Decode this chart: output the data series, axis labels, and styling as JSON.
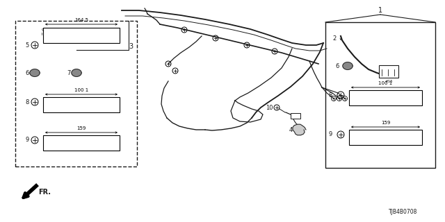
{
  "diagram_id": "TJB4B0708",
  "bg_color": "#ffffff",
  "line_color": "#1a1a1a",
  "fig_width": 6.4,
  "fig_height": 3.2,
  "dpi": 100
}
